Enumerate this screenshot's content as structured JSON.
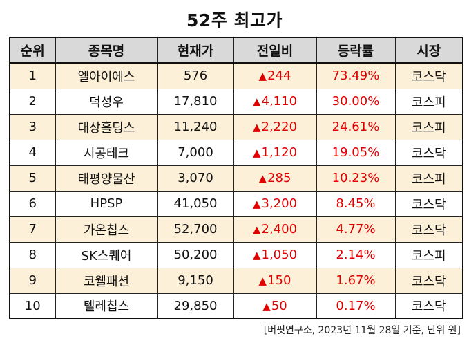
{
  "title": "52주 최고가",
  "columns": [
    "순위",
    "종목명",
    "현재가",
    "전일비",
    "등락률",
    "시장"
  ],
  "up_symbol": "▲",
  "colors": {
    "header_bg": "#d9d9d9",
    "odd_row_bg": "#fdf0d8",
    "up_red": "#e00000"
  },
  "rows": [
    {
      "rank": "1",
      "name": "엘아이에스",
      "price": "576",
      "change": "244",
      "rate": "73.49%",
      "market": "코스닥"
    },
    {
      "rank": "2",
      "name": "덕성우",
      "price": "17,810",
      "change": "4,110",
      "rate": "30.00%",
      "market": "코스피"
    },
    {
      "rank": "3",
      "name": "대상홀딩스",
      "price": "11,240",
      "change": "2,220",
      "rate": "24.61%",
      "market": "코스피"
    },
    {
      "rank": "4",
      "name": "시공테크",
      "price": "7,000",
      "change": "1,120",
      "rate": "19.05%",
      "market": "코스닥"
    },
    {
      "rank": "5",
      "name": "태평양물산",
      "price": "3,070",
      "change": "285",
      "rate": "10.23%",
      "market": "코스피"
    },
    {
      "rank": "6",
      "name": "HPSP",
      "price": "41,050",
      "change": "3,200",
      "rate": "8.45%",
      "market": "코스닥"
    },
    {
      "rank": "7",
      "name": "가온칩스",
      "price": "52,700",
      "change": "2,400",
      "rate": "4.77%",
      "market": "코스닥"
    },
    {
      "rank": "8",
      "name": "SK스퀘어",
      "price": "50,200",
      "change": "1,050",
      "rate": "2.14%",
      "market": "코스피"
    },
    {
      "rank": "9",
      "name": "코웰패션",
      "price": "9,150",
      "change": "150",
      "rate": "1.67%",
      "market": "코스닥"
    },
    {
      "rank": "10",
      "name": "텔레칩스",
      "price": "29,850",
      "change": "50",
      "rate": "0.17%",
      "market": "코스닥"
    }
  ],
  "footer": "[버핏연구소, 2023년 11월 28일 기준, 단위 원]"
}
